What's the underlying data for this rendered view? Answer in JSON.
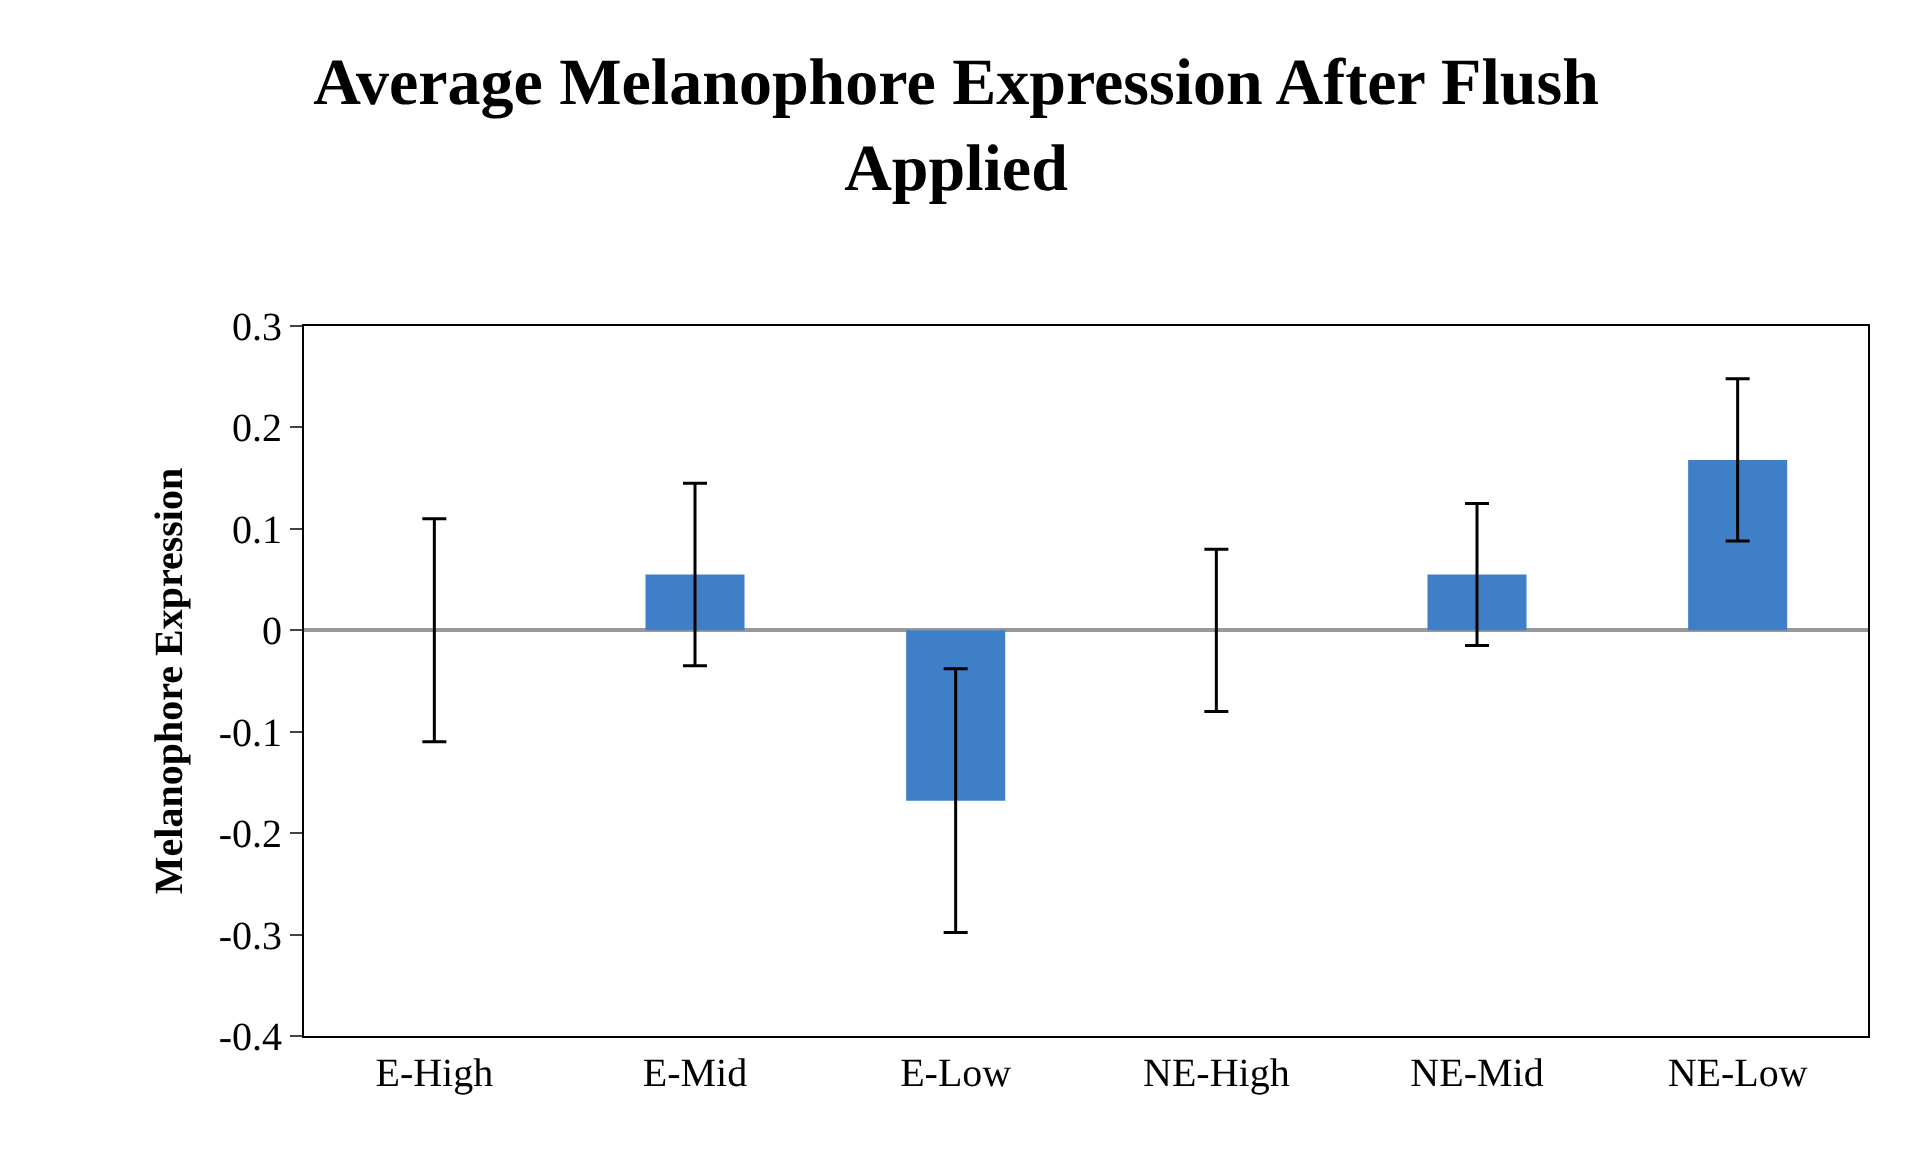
{
  "chart_data": {
    "type": "bar",
    "title": "Average Melanophore Expression After Flush Applied",
    "ylabel": "Melanophore Expression",
    "categories": [
      "E-High",
      "E-Mid",
      "E-Low",
      "NE-High",
      "NE-Mid",
      "NE-Low"
    ],
    "values": [
      0,
      0.055,
      -0.168,
      0,
      0.055,
      0.168
    ],
    "errors": [
      0.11,
      0.09,
      0.13,
      0.08,
      0.07,
      0.08
    ],
    "color": "#3f7fc8",
    "ylim": [
      -0.4,
      0.3
    ],
    "yticks": [
      -0.4,
      -0.3,
      -0.2,
      -0.1,
      0,
      0.1,
      0.2,
      0.3
    ],
    "legend": false
  }
}
